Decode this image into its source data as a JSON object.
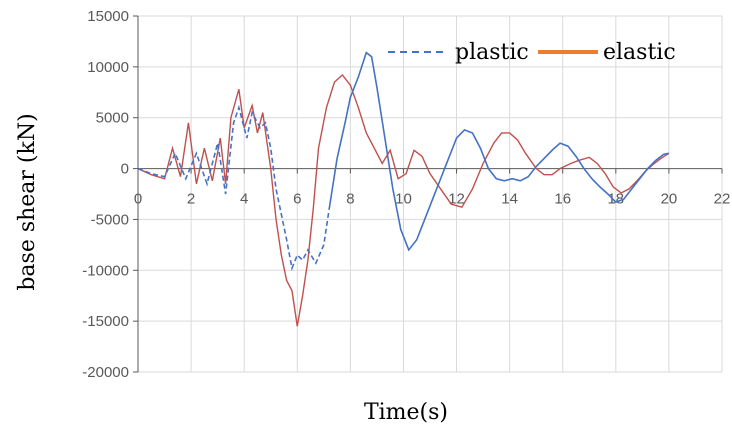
{
  "chart_data": {
    "type": "line",
    "xlabel": "Time(s)",
    "ylabel": "base shear (kN)",
    "xlim": [
      0,
      22
    ],
    "ylim": [
      -20000,
      15000
    ],
    "x_ticks": [
      0,
      2,
      4,
      6,
      8,
      10,
      12,
      14,
      16,
      18,
      20,
      22
    ],
    "y_ticks": [
      15000,
      10000,
      5000,
      0,
      -5000,
      -10000,
      -15000,
      -20000
    ],
    "x_tick_labels": [
      "0",
      "2",
      "4",
      "6",
      "8",
      "10",
      "12",
      "14",
      "16",
      "18",
      "20",
      "22"
    ],
    "y_tick_labels": [
      "15000",
      "10000",
      "5000",
      "0",
      "-5000",
      "-10000",
      "-15000",
      "-20000"
    ],
    "grid": true,
    "legend_position": "top-right",
    "series": [
      {
        "name": "plastic",
        "color": "#4472C4",
        "style": "dashed-then-solid",
        "points": [
          [
            0,
            0
          ],
          [
            0.5,
            -500
          ],
          [
            1,
            -800
          ],
          [
            1.4,
            1500
          ],
          [
            1.8,
            -1000
          ],
          [
            2.2,
            1500
          ],
          [
            2.6,
            -1500
          ],
          [
            3,
            2500
          ],
          [
            3.3,
            -2500
          ],
          [
            3.6,
            4500
          ],
          [
            3.8,
            6000
          ],
          [
            4.1,
            3000
          ],
          [
            4.3,
            5500
          ],
          [
            4.6,
            4000
          ],
          [
            4.8,
            4500
          ],
          [
            5,
            2000
          ],
          [
            5.2,
            -2000
          ],
          [
            5.4,
            -4500
          ],
          [
            5.6,
            -7000
          ],
          [
            5.8,
            -9800
          ],
          [
            6.0,
            -8500
          ],
          [
            6.2,
            -9000
          ],
          [
            6.4,
            -8000
          ],
          [
            6.7,
            -9300
          ],
          [
            7.0,
            -7500
          ],
          [
            7.2,
            -4000
          ],
          [
            7.5,
            1000
          ],
          [
            7.8,
            4500
          ],
          [
            8.0,
            7000
          ],
          [
            8.3,
            9000
          ],
          [
            8.6,
            11400
          ],
          [
            8.8,
            11000
          ],
          [
            9.0,
            8000
          ],
          [
            9.3,
            3000
          ],
          [
            9.6,
            -2000
          ],
          [
            9.9,
            -6000
          ],
          [
            10.2,
            -8000
          ],
          [
            10.5,
            -7000
          ],
          [
            10.8,
            -5000
          ],
          [
            11.1,
            -3000
          ],
          [
            11.4,
            -1000
          ],
          [
            11.7,
            1000
          ],
          [
            12.0,
            3000
          ],
          [
            12.3,
            3800
          ],
          [
            12.6,
            3500
          ],
          [
            12.9,
            2000
          ],
          [
            13.2,
            0
          ],
          [
            13.5,
            -1000
          ],
          [
            13.8,
            -1200
          ],
          [
            14.1,
            -1000
          ],
          [
            14.4,
            -1200
          ],
          [
            14.7,
            -800
          ],
          [
            15.0,
            200
          ],
          [
            15.3,
            1000
          ],
          [
            15.6,
            1800
          ],
          [
            15.9,
            2500
          ],
          [
            16.2,
            2200
          ],
          [
            16.5,
            1200
          ],
          [
            16.8,
            0
          ],
          [
            17.1,
            -1000
          ],
          [
            17.4,
            -1800
          ],
          [
            17.7,
            -2500
          ],
          [
            18.0,
            -3300
          ],
          [
            18.3,
            -3000
          ],
          [
            18.6,
            -2000
          ],
          [
            18.9,
            -1000
          ],
          [
            19.2,
            0
          ],
          [
            19.5,
            800
          ],
          [
            19.8,
            1400
          ],
          [
            20.0,
            1500
          ]
        ]
      },
      {
        "name": "elastic",
        "color": "#C0504D",
        "style": "solid",
        "points": [
          [
            0,
            0
          ],
          [
            0.5,
            -600
          ],
          [
            1,
            -1000
          ],
          [
            1.3,
            2000
          ],
          [
            1.6,
            -800
          ],
          [
            1.9,
            4500
          ],
          [
            2.2,
            -1500
          ],
          [
            2.5,
            2000
          ],
          [
            2.8,
            -1200
          ],
          [
            3.1,
            3000
          ],
          [
            3.3,
            -1500
          ],
          [
            3.5,
            5000
          ],
          [
            3.8,
            7800
          ],
          [
            4.0,
            4000
          ],
          [
            4.3,
            6200
          ],
          [
            4.5,
            3500
          ],
          [
            4.7,
            5500
          ],
          [
            5.0,
            0
          ],
          [
            5.2,
            -5000
          ],
          [
            5.4,
            -8500
          ],
          [
            5.6,
            -11000
          ],
          [
            5.8,
            -12000
          ],
          [
            6.0,
            -15500
          ],
          [
            6.2,
            -12500
          ],
          [
            6.4,
            -9000
          ],
          [
            6.6,
            -4000
          ],
          [
            6.8,
            2000
          ],
          [
            7.1,
            6000
          ],
          [
            7.4,
            8500
          ],
          [
            7.7,
            9200
          ],
          [
            8.0,
            8200
          ],
          [
            8.3,
            6000
          ],
          [
            8.6,
            3500
          ],
          [
            8.9,
            2000
          ],
          [
            9.2,
            500
          ],
          [
            9.5,
            1800
          ],
          [
            9.8,
            -1000
          ],
          [
            10.1,
            -500
          ],
          [
            10.4,
            1800
          ],
          [
            10.7,
            1200
          ],
          [
            11.0,
            -500
          ],
          [
            11.4,
            -2000
          ],
          [
            11.8,
            -3500
          ],
          [
            12.2,
            -3800
          ],
          [
            12.6,
            -2000
          ],
          [
            13.0,
            500
          ],
          [
            13.4,
            2500
          ],
          [
            13.7,
            3500
          ],
          [
            14.0,
            3500
          ],
          [
            14.3,
            2800
          ],
          [
            14.6,
            1500
          ],
          [
            15.0,
            0
          ],
          [
            15.3,
            -600
          ],
          [
            15.6,
            -600
          ],
          [
            15.9,
            0
          ],
          [
            16.3,
            500
          ],
          [
            16.6,
            800
          ],
          [
            17.0,
            1100
          ],
          [
            17.3,
            500
          ],
          [
            17.6,
            -500
          ],
          [
            17.9,
            -1800
          ],
          [
            18.2,
            -2400
          ],
          [
            18.5,
            -2000
          ],
          [
            18.8,
            -1200
          ],
          [
            19.1,
            -300
          ],
          [
            19.4,
            400
          ],
          [
            19.7,
            1000
          ],
          [
            20.0,
            1500
          ]
        ]
      }
    ]
  }
}
